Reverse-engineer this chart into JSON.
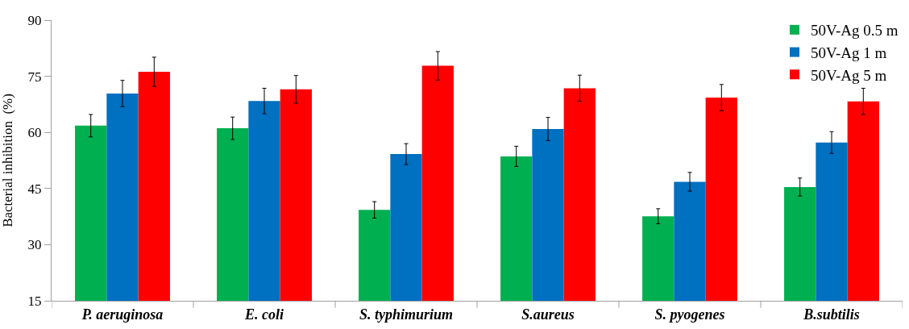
{
  "chart_data": {
    "type": "bar",
    "ylabel": "Bacterial inhibition  (%)",
    "categories": [
      "P. aeruginosa",
      "E. coli",
      "S. typhimurium",
      "S.aureus",
      "S. pyogenes",
      "B.subtilis"
    ],
    "series": [
      {
        "name": "50V-Ag 0.5 m",
        "color": "#00b050",
        "values": [
          61.8,
          61.1,
          39.3,
          53.6,
          37.6,
          45.4
        ],
        "errors": [
          3,
          3,
          2.2,
          2.7,
          2,
          2.4
        ]
      },
      {
        "name": "50V-Ag 1 m",
        "color": "#0070c0",
        "values": [
          70.4,
          68.4,
          54.2,
          60.9,
          46.8,
          57.3
        ],
        "errors": [
          3.5,
          3.4,
          2.8,
          3.1,
          2.5,
          2.9
        ]
      },
      {
        "name": "50V-Ag 5 m",
        "color": "#ff0000",
        "values": [
          76.2,
          71.5,
          77.8,
          71.8,
          69.3,
          68.3
        ],
        "errors": [
          3.9,
          3.7,
          3.8,
          3.5,
          3.5,
          3.5
        ]
      }
    ],
    "ylim": [
      15,
      90
    ],
    "yticks": [
      15,
      30,
      45,
      60,
      75,
      90
    ],
    "grid": false,
    "legend": "top right"
  }
}
